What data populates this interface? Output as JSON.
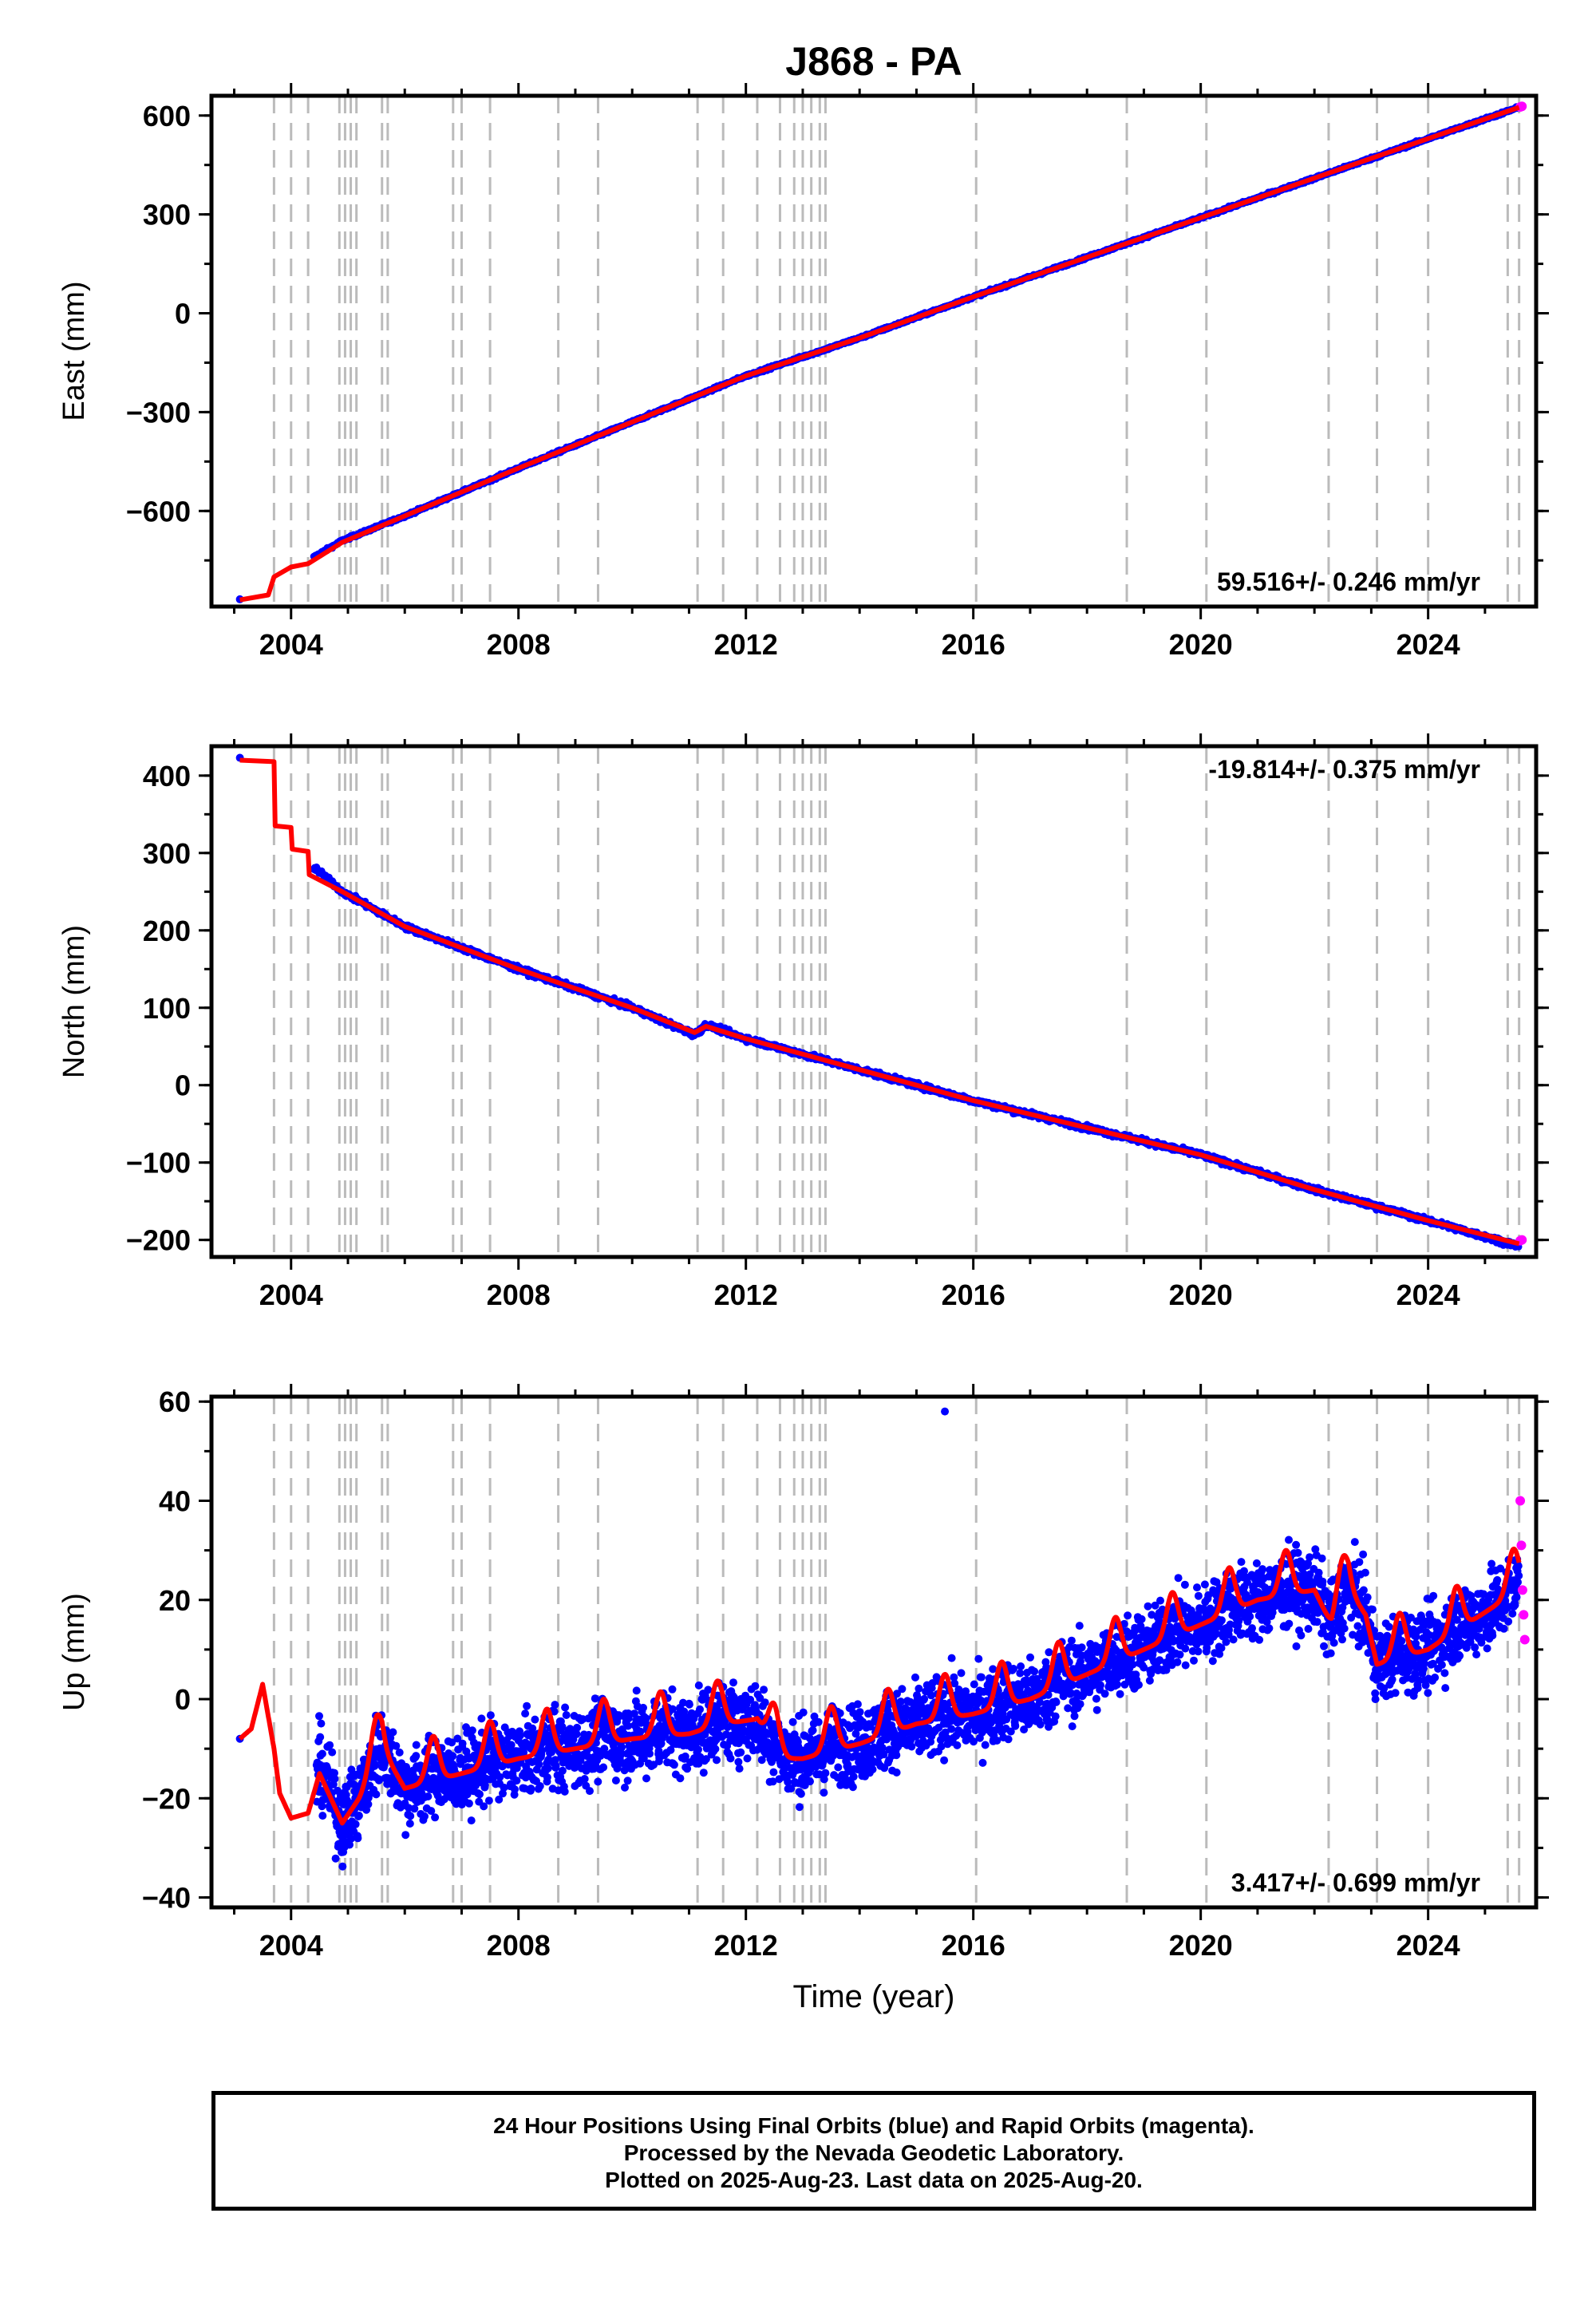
{
  "title": "J868 - PA",
  "x_tick_labels": [
    "2004",
    "2008",
    "2012",
    "2016",
    "2020",
    "2024"
  ],
  "xlabel": "Time (year)",
  "footer": {
    "line1": "24 Hour Positions Using Final Orbits (blue) and Rapid Orbits (magenta).",
    "line2": "Processed by the Nevada Geodetic Laboratory.",
    "line3": "Plotted on 2025-Aug-23. Last data on 2025-Aug-20."
  },
  "colors": {
    "final_orbits": "#0000ff",
    "rapid_orbits": "#ff00ff",
    "model": "#ff0000",
    "event_lines": "#bbbbbb"
  },
  "chart_data": [
    {
      "type": "scatter",
      "ylabel": "East (mm)",
      "xlim": [
        2002.6,
        2025.9
      ],
      "ylim": [
        -890,
        660
      ],
      "yticks": [
        -600,
        -300,
        0,
        300,
        600
      ],
      "grid": false,
      "rate_label": "59.516+/- 0.246 mm/yr",
      "event_lines": [
        2003.7,
        2004.0,
        2004.3,
        2004.85,
        2004.95,
        2005.05,
        2005.15,
        2005.6,
        2005.7,
        2006.85,
        2007.0,
        2007.5,
        2008.7,
        2009.4,
        2011.15,
        2011.6,
        2012.2,
        2012.6,
        2012.85,
        2013.0,
        2013.15,
        2013.3,
        2013.4,
        2016.05,
        2018.7,
        2020.1,
        2022.25,
        2023.1,
        2024.0,
        2025.4,
        2025.6
      ],
      "series": [
        {
          "name": "Final Orbits",
          "x": [
            2003.1,
            2004.4,
            2004.9,
            2006.0,
            2008.0,
            2010.0,
            2012.0,
            2014.0,
            2016.0,
            2018.0,
            2020.0,
            2022.0,
            2024.0,
            2025.6
          ],
          "y": [
            -868,
            -740,
            -690,
            -615,
            -470,
            -330,
            -190,
            -75,
            50,
            170,
            290,
            410,
            530,
            625
          ]
        },
        {
          "name": "Rapid Orbits",
          "x": [
            2025.62,
            2025.65
          ],
          "y": [
            626,
            628
          ]
        }
      ],
      "model": {
        "x": [
          2003.1,
          2003.6,
          2003.7,
          2004.0,
          2004.3,
          2004.9,
          2006.0,
          2008.0,
          2010.0,
          2012.0,
          2014.0,
          2016.0,
          2018.0,
          2020.0,
          2022.0,
          2024.0,
          2025.6
        ],
        "y": [
          -870,
          -855,
          -800,
          -770,
          -760,
          -695,
          -615,
          -470,
          -330,
          -190,
          -75,
          50,
          170,
          290,
          410,
          530,
          625
        ]
      }
    },
    {
      "type": "scatter",
      "ylabel": "North (mm)",
      "xlim": [
        2002.6,
        2025.9
      ],
      "ylim": [
        -222,
        438
      ],
      "yticks": [
        -200,
        -100,
        0,
        100,
        200,
        300,
        400
      ],
      "grid": false,
      "rate_label": "-19.814+/- 0.375 mm/yr",
      "event_lines": [
        2003.7,
        2004.0,
        2004.3,
        2004.85,
        2004.95,
        2005.05,
        2005.15,
        2005.6,
        2005.7,
        2006.85,
        2007.0,
        2007.5,
        2008.7,
        2009.4,
        2011.15,
        2011.6,
        2012.2,
        2012.6,
        2012.85,
        2013.0,
        2013.15,
        2013.3,
        2013.4,
        2016.05,
        2018.7,
        2020.1,
        2022.25,
        2023.1,
        2024.0,
        2025.4,
        2025.6
      ],
      "series": [
        {
          "name": "Final Orbits",
          "x": [
            2003.1,
            2004.4,
            2004.9,
            2006.0,
            2008.0,
            2010.0,
            2011.1,
            2011.3,
            2012.0,
            2014.0,
            2016.0,
            2018.0,
            2020.0,
            2022.0,
            2024.0,
            2025.6
          ],
          "y": [
            423,
            282,
            250,
            205,
            150,
            100,
            65,
            78,
            60,
            20,
            -20,
            -55,
            -90,
            -135,
            -175,
            -208
          ]
        },
        {
          "name": "Rapid Orbits",
          "x": [
            2025.62,
            2025.65
          ],
          "y": [
            -201,
            -200
          ]
        }
      ],
      "model": {
        "x": [
          2003.1,
          2003.7,
          2003.72,
          2004.0,
          2004.02,
          2004.3,
          2004.32,
          2004.9,
          2006.0,
          2008.0,
          2010.0,
          2011.1,
          2011.3,
          2012.0,
          2014.0,
          2016.0,
          2018.0,
          2020.0,
          2022.0,
          2024.0,
          2025.6
        ],
        "y": [
          420,
          418,
          335,
          333,
          305,
          302,
          272,
          250,
          205,
          150,
          100,
          68,
          76,
          60,
          20,
          -20,
          -55,
          -90,
          -135,
          -175,
          -205
        ]
      }
    },
    {
      "type": "scatter",
      "ylabel": "Up (mm)",
      "xlim": [
        2002.6,
        2025.9
      ],
      "ylim": [
        -42,
        61
      ],
      "yticks": [
        -40,
        -20,
        0,
        20,
        40,
        60
      ],
      "grid": false,
      "rate_label": "3.417+/- 0.699 mm/yr",
      "event_lines": [
        2003.7,
        2004.0,
        2004.3,
        2004.85,
        2004.95,
        2005.05,
        2005.15,
        2005.6,
        2005.7,
        2006.85,
        2007.0,
        2007.5,
        2008.7,
        2009.4,
        2011.15,
        2011.6,
        2012.2,
        2012.6,
        2012.85,
        2013.0,
        2013.15,
        2013.3,
        2013.4,
        2016.05,
        2018.7,
        2020.1,
        2022.25,
        2023.1,
        2024.0,
        2025.4,
        2025.6
      ],
      "series": [
        {
          "name": "Final Orbits",
          "x": [
            2003.1,
            2004.5,
            2005.0,
            2006.0,
            2008.0,
            2010.0,
            2012.0,
            2014.0,
            2015.5,
            2016.0,
            2018.0,
            2020.0,
            2021.5,
            2022.5,
            2023.0,
            2024.0,
            2025.6
          ],
          "y": [
            -8,
            -22,
            -25,
            -14,
            -12,
            -8,
            -3,
            -4,
            58,
            0,
            8,
            15,
            22,
            25,
            10,
            10,
            18
          ]
        },
        {
          "name": "Rapid Orbits",
          "x": [
            2025.62,
            2025.64,
            2025.66,
            2025.68,
            2025.7
          ],
          "y": [
            40,
            31,
            22,
            17,
            12
          ]
        }
      ],
      "model": {
        "x": [
          2003.1,
          2003.3,
          2003.5,
          2003.7,
          2003.8,
          2004.0,
          2004.3,
          2004.5,
          2004.9,
          2005.2,
          2005.6,
          2006.0,
          2007.0,
          2008.0,
          2009.0,
          2010.0,
          2011.0,
          2011.6,
          2012.2,
          2012.6,
          2013.0,
          2014.0,
          2015.0,
          2016.0,
          2017.0,
          2018.0,
          2019.0,
          2020.0,
          2021.0,
          2022.0,
          2022.3,
          2022.6,
          2022.9,
          2023.1,
          2024.0,
          2025.6
        ],
        "y": [
          -8,
          -6,
          3,
          -10,
          -19,
          -24,
          -23,
          -15,
          -25,
          -20,
          -10,
          -18,
          -15,
          -12,
          -10,
          -8,
          -7,
          -5,
          -4,
          -12,
          -12,
          -9,
          -5,
          -3,
          0,
          5,
          10,
          15,
          20,
          22,
          15,
          22,
          17,
          7,
          10,
          22
        ]
      }
    }
  ]
}
